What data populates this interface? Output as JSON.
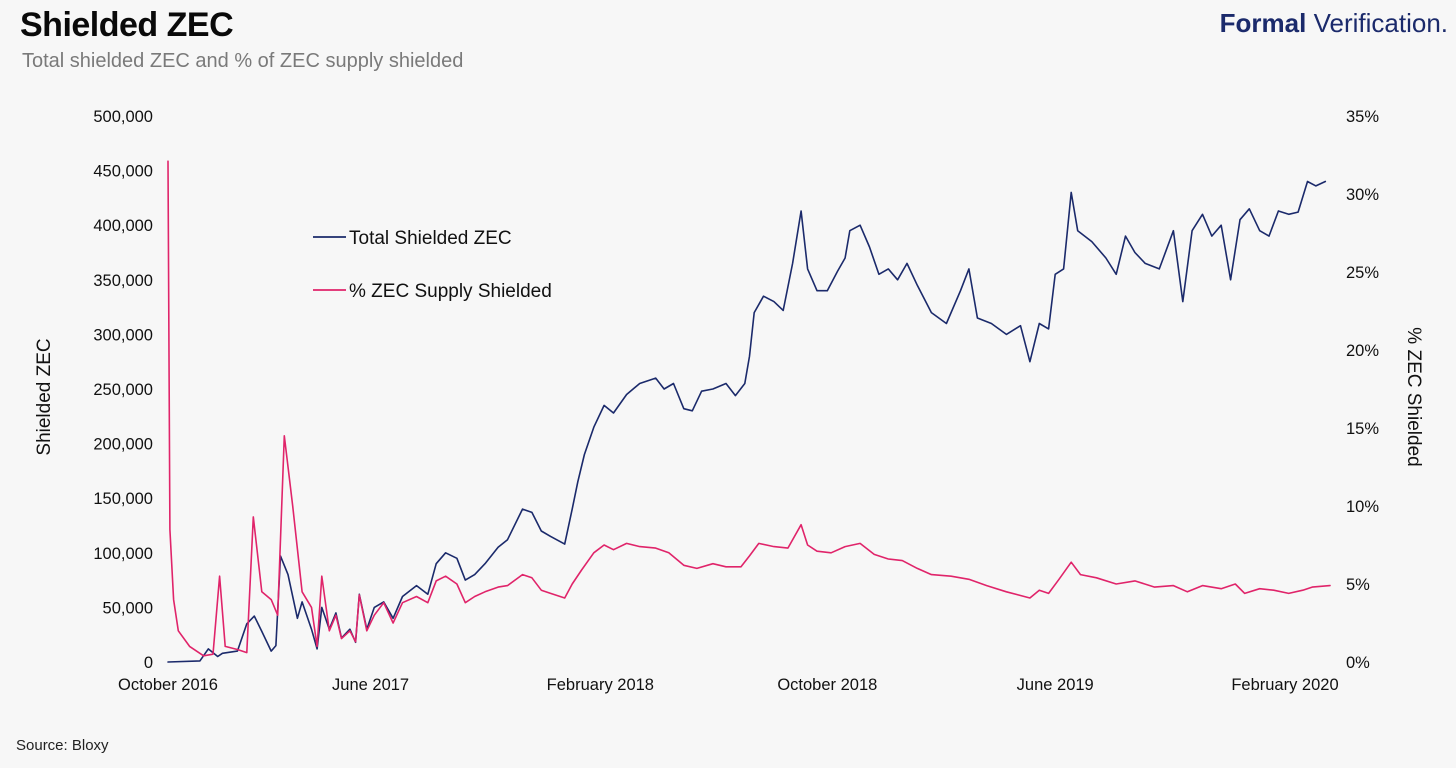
{
  "header": {
    "title": "Shielded ZEC",
    "subtitle": "Total shielded ZEC and % of ZEC supply shielded",
    "brand_bold": "Formal",
    "brand_light": "Verification."
  },
  "footer": {
    "source": "Source: Bloxy"
  },
  "colors": {
    "total": "#1b2a6b",
    "percent": "#e0246a",
    "background": "#f7f7f7"
  },
  "chart_data": {
    "type": "line",
    "title": "Shielded ZEC",
    "subtitle": "Total shielded ZEC and % of ZEC supply shielded",
    "ylabel": "Shielded ZEC",
    "y2label": "% ZEC Shielded",
    "ylim": [
      0,
      500000
    ],
    "y2lim": [
      0,
      35
    ],
    "grid": false,
    "legend_placement": "upper-left inside plot",
    "x_ticks": [
      {
        "date": "2016-10-28",
        "label": "October 2016"
      },
      {
        "date": "2017-06-01",
        "label": "June 2017"
      },
      {
        "date": "2018-02-01",
        "label": "February 2018"
      },
      {
        "date": "2018-10-01",
        "label": "October 2018"
      },
      {
        "date": "2019-06-01",
        "label": "June 2019"
      },
      {
        "date": "2020-02-01",
        "label": "February 2020"
      }
    ],
    "x_end_date": "2020-03-20",
    "y_ticks": [
      {
        "value": 0,
        "label": "0"
      },
      {
        "value": 50000,
        "label": "50,000"
      },
      {
        "value": 100000,
        "label": "100,000"
      },
      {
        "value": 150000,
        "label": "150,000"
      },
      {
        "value": 200000,
        "label": "200,000"
      },
      {
        "value": 250000,
        "label": "250,000"
      },
      {
        "value": 300000,
        "label": "300,000"
      },
      {
        "value": 350000,
        "label": "350,000"
      },
      {
        "value": 400000,
        "label": "400,000"
      },
      {
        "value": 450000,
        "label": "450,000"
      },
      {
        "value": 500000,
        "label": "500,000"
      }
    ],
    "y2_ticks": [
      {
        "value": 0,
        "label": "0%"
      },
      {
        "value": 5,
        "label": "5%"
      },
      {
        "value": 10,
        "label": "10%"
      },
      {
        "value": 15,
        "label": "15%"
      },
      {
        "value": 20,
        "label": "20%"
      },
      {
        "value": 25,
        "label": "25%"
      },
      {
        "value": 30,
        "label": "30%"
      },
      {
        "value": 35,
        "label": "35%"
      }
    ],
    "series": [
      {
        "name": "Total Shielded ZEC",
        "axis": "left",
        "color": "#1b2a6b",
        "points": [
          [
            "2016-10-28",
            0
          ],
          [
            "2016-12-01",
            1000
          ],
          [
            "2016-12-10",
            12000
          ],
          [
            "2016-12-20",
            5000
          ],
          [
            "2016-12-25",
            8000
          ],
          [
            "2017-01-10",
            10000
          ],
          [
            "2017-01-20",
            35000
          ],
          [
            "2017-01-28",
            42000
          ],
          [
            "2017-02-05",
            28000
          ],
          [
            "2017-02-15",
            10000
          ],
          [
            "2017-02-20",
            15000
          ],
          [
            "2017-02-25",
            97000
          ],
          [
            "2017-03-05",
            80000
          ],
          [
            "2017-03-15",
            40000
          ],
          [
            "2017-03-20",
            55000
          ],
          [
            "2017-03-30",
            30000
          ],
          [
            "2017-04-05",
            12000
          ],
          [
            "2017-04-10",
            50000
          ],
          [
            "2017-04-18",
            30000
          ],
          [
            "2017-04-25",
            45000
          ],
          [
            "2017-05-01",
            22000
          ],
          [
            "2017-05-10",
            30000
          ],
          [
            "2017-05-16",
            18000
          ],
          [
            "2017-05-20",
            62000
          ],
          [
            "2017-05-28",
            30000
          ],
          [
            "2017-06-05",
            50000
          ],
          [
            "2017-06-15",
            55000
          ],
          [
            "2017-06-25",
            40000
          ],
          [
            "2017-07-05",
            60000
          ],
          [
            "2017-07-20",
            70000
          ],
          [
            "2017-08-01",
            62000
          ],
          [
            "2017-08-10",
            90000
          ],
          [
            "2017-08-20",
            100000
          ],
          [
            "2017-09-01",
            95000
          ],
          [
            "2017-09-10",
            75000
          ],
          [
            "2017-09-20",
            80000
          ],
          [
            "2017-10-01",
            90000
          ],
          [
            "2017-10-15",
            105000
          ],
          [
            "2017-10-25",
            112000
          ],
          [
            "2017-11-10",
            140000
          ],
          [
            "2017-11-20",
            137000
          ],
          [
            "2017-11-30",
            120000
          ],
          [
            "2017-12-10",
            115000
          ],
          [
            "2017-12-25",
            108000
          ],
          [
            "2018-01-02",
            140000
          ],
          [
            "2018-01-08",
            165000
          ],
          [
            "2018-01-15",
            190000
          ],
          [
            "2018-01-25",
            215000
          ],
          [
            "2018-02-05",
            235000
          ],
          [
            "2018-02-15",
            228000
          ],
          [
            "2018-03-01",
            245000
          ],
          [
            "2018-03-15",
            255000
          ],
          [
            "2018-04-01",
            260000
          ],
          [
            "2018-04-10",
            250000
          ],
          [
            "2018-04-20",
            255000
          ],
          [
            "2018-05-01",
            232000
          ],
          [
            "2018-05-10",
            230000
          ],
          [
            "2018-05-20",
            248000
          ],
          [
            "2018-06-01",
            250000
          ],
          [
            "2018-06-15",
            255000
          ],
          [
            "2018-06-25",
            244000
          ],
          [
            "2018-07-05",
            255000
          ],
          [
            "2018-07-10",
            280000
          ],
          [
            "2018-07-15",
            320000
          ],
          [
            "2018-07-25",
            335000
          ],
          [
            "2018-08-05",
            330000
          ],
          [
            "2018-08-15",
            322000
          ],
          [
            "2018-08-25",
            365000
          ],
          [
            "2018-09-03",
            413000
          ],
          [
            "2018-09-10",
            360000
          ],
          [
            "2018-09-20",
            340000
          ],
          [
            "2018-10-01",
            340000
          ],
          [
            "2018-10-12",
            358000
          ],
          [
            "2018-10-20",
            370000
          ],
          [
            "2018-10-25",
            395000
          ],
          [
            "2018-11-05",
            400000
          ],
          [
            "2018-11-15",
            380000
          ],
          [
            "2018-11-25",
            355000
          ],
          [
            "2018-12-05",
            360000
          ],
          [
            "2018-12-15",
            350000
          ],
          [
            "2018-12-25",
            365000
          ],
          [
            "2019-01-05",
            345000
          ],
          [
            "2019-01-20",
            320000
          ],
          [
            "2019-02-05",
            310000
          ],
          [
            "2019-02-20",
            340000
          ],
          [
            "2019-03-01",
            360000
          ],
          [
            "2019-03-10",
            315000
          ],
          [
            "2019-03-25",
            310000
          ],
          [
            "2019-04-10",
            300000
          ],
          [
            "2019-04-25",
            308000
          ],
          [
            "2019-05-05",
            275000
          ],
          [
            "2019-05-15",
            310000
          ],
          [
            "2019-05-25",
            305000
          ],
          [
            "2019-06-01",
            355000
          ],
          [
            "2019-06-10",
            360000
          ],
          [
            "2019-06-18",
            430000
          ],
          [
            "2019-06-25",
            395000
          ],
          [
            "2019-07-10",
            385000
          ],
          [
            "2019-07-25",
            370000
          ],
          [
            "2019-08-05",
            355000
          ],
          [
            "2019-08-15",
            390000
          ],
          [
            "2019-08-25",
            375000
          ],
          [
            "2019-09-05",
            365000
          ],
          [
            "2019-09-20",
            360000
          ],
          [
            "2019-10-05",
            395000
          ],
          [
            "2019-10-15",
            330000
          ],
          [
            "2019-10-25",
            395000
          ],
          [
            "2019-11-05",
            410000
          ],
          [
            "2019-11-15",
            390000
          ],
          [
            "2019-11-25",
            400000
          ],
          [
            "2019-12-05",
            350000
          ],
          [
            "2019-12-15",
            405000
          ],
          [
            "2019-12-25",
            415000
          ],
          [
            "2020-01-05",
            395000
          ],
          [
            "2020-01-15",
            390000
          ],
          [
            "2020-01-25",
            413000
          ],
          [
            "2020-02-05",
            410000
          ],
          [
            "2020-02-15",
            412000
          ],
          [
            "2020-02-25",
            440000
          ],
          [
            "2020-03-05",
            436000
          ],
          [
            "2020-03-15",
            440000
          ]
        ]
      },
      {
        "name": "% ZEC Supply Shielded",
        "axis": "right",
        "color": "#e0246a",
        "points": [
          [
            "2016-10-28",
            32.1
          ],
          [
            "2016-10-30",
            8.5
          ],
          [
            "2016-11-03",
            4.0
          ],
          [
            "2016-11-08",
            2.0
          ],
          [
            "2016-11-20",
            1.0
          ],
          [
            "2016-12-05",
            0.4
          ],
          [
            "2016-12-15",
            0.5
          ],
          [
            "2016-12-22",
            5.5
          ],
          [
            "2016-12-28",
            1.0
          ],
          [
            "2017-01-10",
            0.8
          ],
          [
            "2017-01-20",
            0.6
          ],
          [
            "2017-01-27",
            9.3
          ],
          [
            "2017-02-05",
            4.5
          ],
          [
            "2017-02-15",
            4.0
          ],
          [
            "2017-02-22",
            3.0
          ],
          [
            "2017-03-01",
            14.5
          ],
          [
            "2017-03-10",
            10.0
          ],
          [
            "2017-03-20",
            4.5
          ],
          [
            "2017-03-30",
            3.5
          ],
          [
            "2017-04-05",
            1.0
          ],
          [
            "2017-04-10",
            5.5
          ],
          [
            "2017-04-18",
            2.0
          ],
          [
            "2017-04-25",
            3.0
          ],
          [
            "2017-05-01",
            1.5
          ],
          [
            "2017-05-10",
            2.0
          ],
          [
            "2017-05-16",
            1.3
          ],
          [
            "2017-05-20",
            4.3
          ],
          [
            "2017-05-28",
            2.0
          ],
          [
            "2017-06-05",
            3.0
          ],
          [
            "2017-06-15",
            3.8
          ],
          [
            "2017-06-25",
            2.5
          ],
          [
            "2017-07-05",
            3.8
          ],
          [
            "2017-07-20",
            4.2
          ],
          [
            "2017-08-01",
            3.8
          ],
          [
            "2017-08-10",
            5.2
          ],
          [
            "2017-08-20",
            5.5
          ],
          [
            "2017-09-01",
            5.0
          ],
          [
            "2017-09-10",
            3.8
          ],
          [
            "2017-09-20",
            4.2
          ],
          [
            "2017-10-01",
            4.5
          ],
          [
            "2017-10-15",
            4.8
          ],
          [
            "2017-10-25",
            4.9
          ],
          [
            "2017-11-10",
            5.6
          ],
          [
            "2017-11-20",
            5.4
          ],
          [
            "2017-11-30",
            4.6
          ],
          [
            "2017-12-10",
            4.4
          ],
          [
            "2017-12-25",
            4.1
          ],
          [
            "2018-01-02",
            5.0
          ],
          [
            "2018-01-12",
            5.9
          ],
          [
            "2018-01-25",
            7.0
          ],
          [
            "2018-02-05",
            7.5
          ],
          [
            "2018-02-15",
            7.2
          ],
          [
            "2018-03-01",
            7.6
          ],
          [
            "2018-03-15",
            7.4
          ],
          [
            "2018-04-01",
            7.3
          ],
          [
            "2018-04-15",
            7.0
          ],
          [
            "2018-05-01",
            6.2
          ],
          [
            "2018-05-15",
            6.0
          ],
          [
            "2018-06-01",
            6.3
          ],
          [
            "2018-06-15",
            6.1
          ],
          [
            "2018-07-01",
            6.1
          ],
          [
            "2018-07-10",
            6.8
          ],
          [
            "2018-07-20",
            7.6
          ],
          [
            "2018-08-05",
            7.4
          ],
          [
            "2018-08-20",
            7.3
          ],
          [
            "2018-09-03",
            8.8
          ],
          [
            "2018-09-10",
            7.5
          ],
          [
            "2018-09-20",
            7.1
          ],
          [
            "2018-10-05",
            7.0
          ],
          [
            "2018-10-20",
            7.4
          ],
          [
            "2018-11-05",
            7.6
          ],
          [
            "2018-11-20",
            6.9
          ],
          [
            "2018-12-05",
            6.6
          ],
          [
            "2018-12-20",
            6.5
          ],
          [
            "2019-01-05",
            6.0
          ],
          [
            "2019-01-20",
            5.6
          ],
          [
            "2019-02-10",
            5.5
          ],
          [
            "2019-03-01",
            5.3
          ],
          [
            "2019-03-20",
            4.9
          ],
          [
            "2019-04-10",
            4.5
          ],
          [
            "2019-05-05",
            4.1
          ],
          [
            "2019-05-15",
            4.6
          ],
          [
            "2019-05-25",
            4.4
          ],
          [
            "2019-06-05",
            5.3
          ],
          [
            "2019-06-18",
            6.4
          ],
          [
            "2019-06-28",
            5.6
          ],
          [
            "2019-07-15",
            5.4
          ],
          [
            "2019-08-05",
            5.0
          ],
          [
            "2019-08-25",
            5.2
          ],
          [
            "2019-09-15",
            4.8
          ],
          [
            "2019-10-05",
            4.9
          ],
          [
            "2019-10-20",
            4.5
          ],
          [
            "2019-11-05",
            4.9
          ],
          [
            "2019-11-25",
            4.7
          ],
          [
            "2019-12-10",
            5.0
          ],
          [
            "2019-12-20",
            4.4
          ],
          [
            "2020-01-05",
            4.7
          ],
          [
            "2020-01-20",
            4.6
          ],
          [
            "2020-02-05",
            4.4
          ],
          [
            "2020-02-20",
            4.6
          ],
          [
            "2020-03-01",
            4.8
          ],
          [
            "2020-03-20",
            4.9
          ]
        ]
      }
    ]
  }
}
